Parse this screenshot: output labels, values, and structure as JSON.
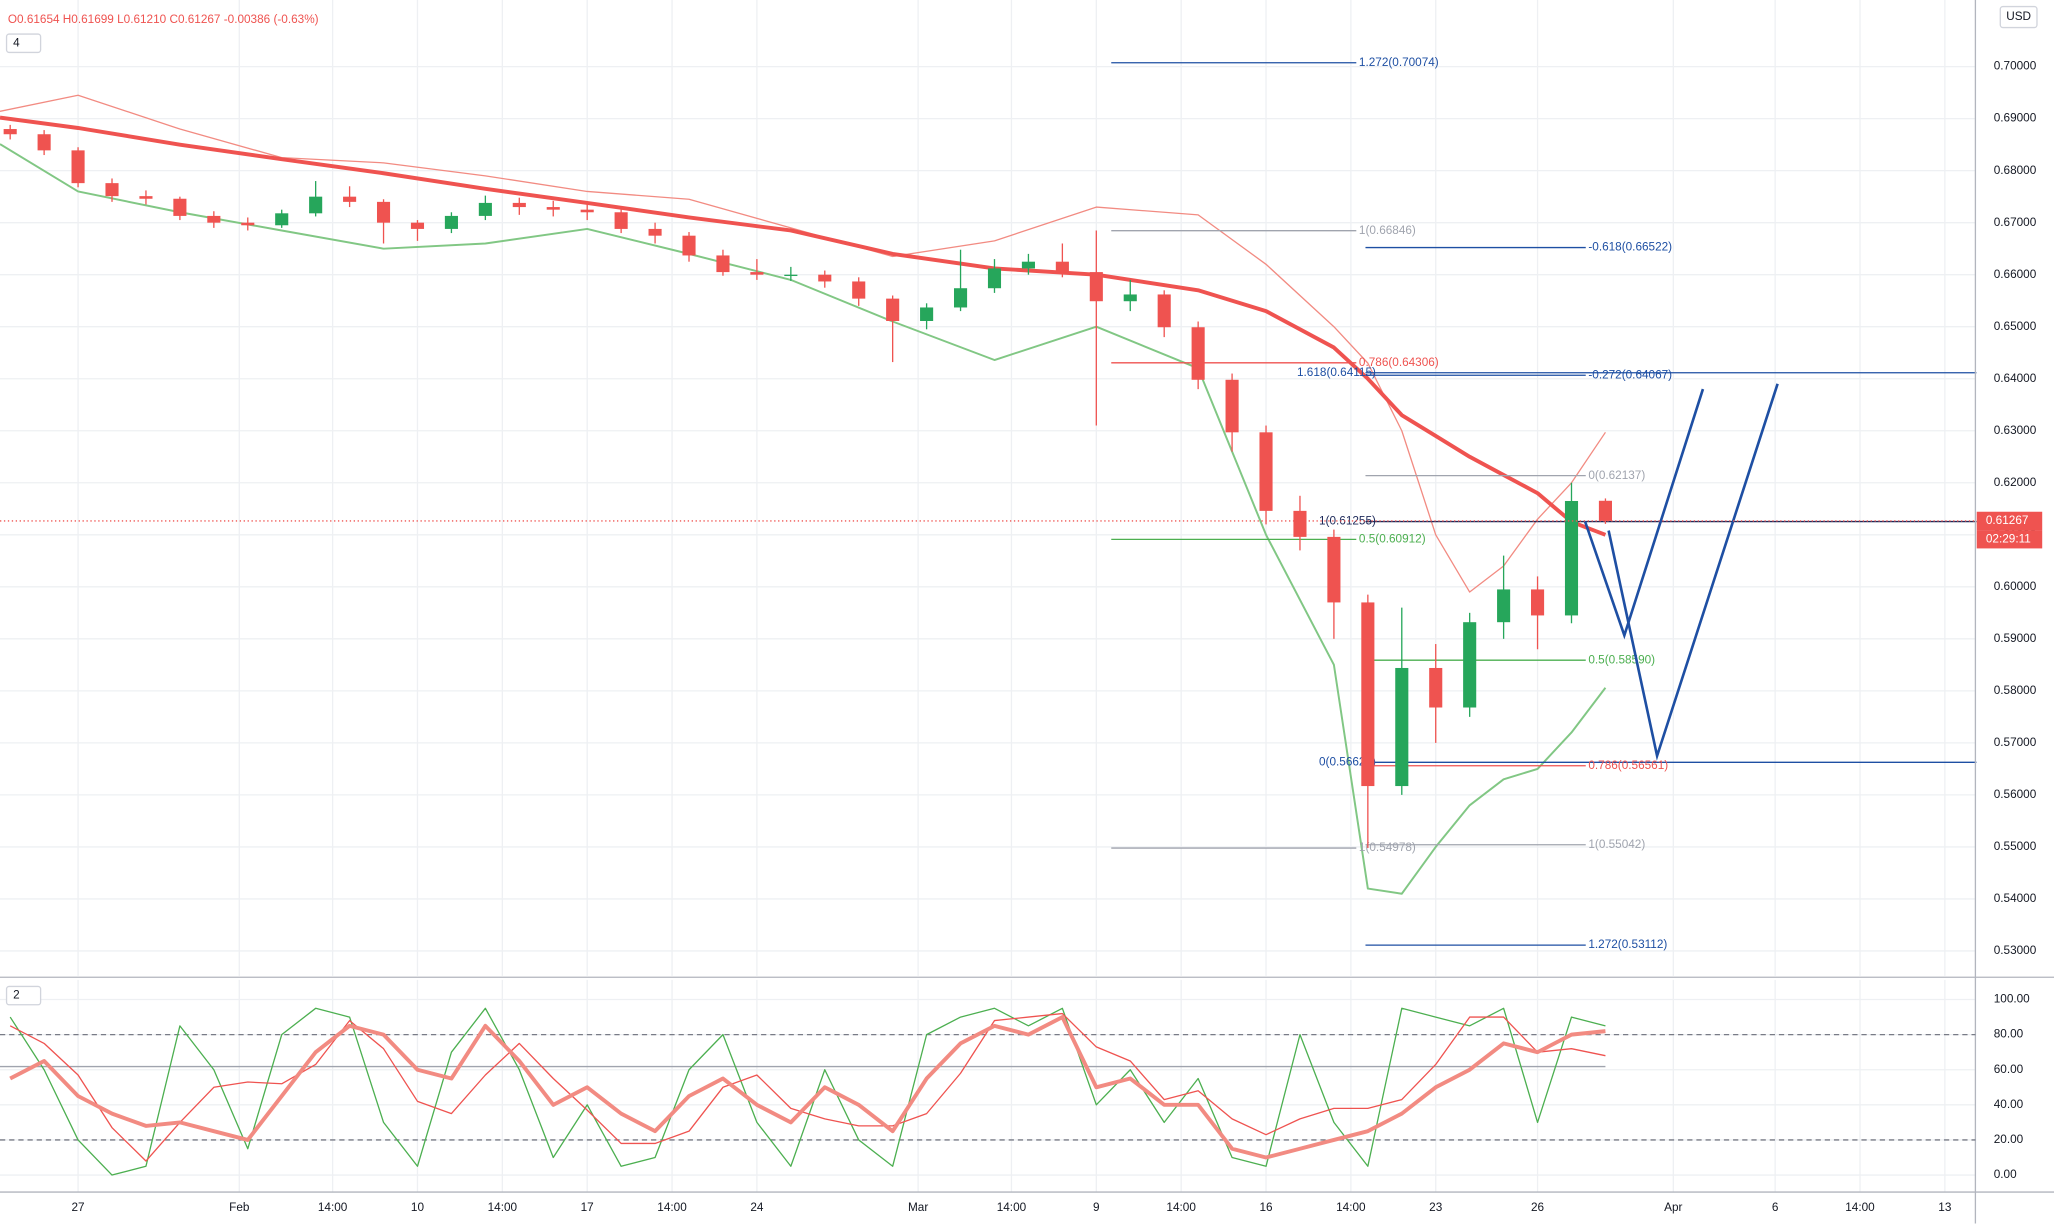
{
  "chart_data": {
    "type": "candlestick",
    "header": "O0.61654 H0.61699 L0.61210 C0.61267 -0.00386 (-0.63%)",
    "interval": "4",
    "pane2_label": "2",
    "currency": "USD",
    "countdown": "02:29:11",
    "last_price": 0.61267,
    "up_color": "#26a65b",
    "down_color": "#ef5350",
    "grid": true,
    "xlim": [
      -2.3,
      55.9
    ],
    "xticks": [
      {
        "value": 0,
        "label": "27"
      },
      {
        "value": 4.75,
        "label": "Feb"
      },
      {
        "value": 7.5,
        "label": "14:00"
      },
      {
        "value": 10,
        "label": "10"
      },
      {
        "value": 12.5,
        "label": "14:00"
      },
      {
        "value": 15,
        "label": "17"
      },
      {
        "value": 17.5,
        "label": "14:00"
      },
      {
        "value": 20,
        "label": "24"
      },
      {
        "value": 24.75,
        "label": "Mar"
      },
      {
        "value": 27.5,
        "label": "14:00"
      },
      {
        "value": 30,
        "label": "9"
      },
      {
        "value": 32.5,
        "label": "14:00"
      },
      {
        "value": 35,
        "label": "16"
      },
      {
        "value": 37.5,
        "label": "14:00"
      },
      {
        "value": 40,
        "label": "23"
      },
      {
        "value": 43,
        "label": "26"
      },
      {
        "value": 47,
        "label": "Apr"
      },
      {
        "value": 50,
        "label": "6"
      },
      {
        "value": 52.5,
        "label": "14:00"
      },
      {
        "value": 55,
        "label": "13"
      }
    ],
    "ylim": [
      0.5252,
      0.7128
    ],
    "yticks": [
      {
        "value": 0.53,
        "label": "0.53000"
      },
      {
        "value": 0.54,
        "label": "0.54000"
      },
      {
        "value": 0.55,
        "label": "0.55000"
      },
      {
        "value": 0.56,
        "label": "0.56000"
      },
      {
        "value": 0.57,
        "label": "0.57000"
      },
      {
        "value": 0.58,
        "label": "0.58000"
      },
      {
        "value": 0.59,
        "label": "0.59000"
      },
      {
        "value": 0.6,
        "label": "0.60000"
      },
      {
        "value": 0.61,
        "label": "0.61000"
      },
      {
        "value": 0.62,
        "label": "0.62000"
      },
      {
        "value": 0.63,
        "label": "0.63000"
      },
      {
        "value": 0.64,
        "label": "0.64000"
      },
      {
        "value": 0.65,
        "label": "0.65000"
      },
      {
        "value": 0.66,
        "label": "0.66000"
      },
      {
        "value": 0.67,
        "label": "0.67000"
      },
      {
        "value": 0.68,
        "label": "0.68000"
      },
      {
        "value": 0.69,
        "label": "0.69000"
      },
      {
        "value": 0.7,
        "label": "0.70000"
      }
    ],
    "x": [
      -2,
      -1,
      0,
      1,
      2,
      3,
      4,
      5,
      6,
      7,
      8,
      9,
      10,
      11,
      12,
      13,
      14,
      15,
      16,
      17,
      18,
      19,
      20,
      21,
      22,
      23,
      24,
      25,
      26,
      27,
      28,
      29,
      30,
      31,
      32,
      33,
      34,
      35,
      36,
      37,
      38,
      39,
      40,
      41,
      42,
      43,
      44,
      45
    ],
    "open": [
      0.688,
      0.687,
      0.6839,
      0.6776,
      0.6751,
      0.6746,
      0.6713,
      0.67,
      0.6695,
      0.6718,
      0.675,
      0.674,
      0.67,
      0.6688,
      0.6713,
      0.6738,
      0.673,
      0.6725,
      0.672,
      0.6688,
      0.6675,
      0.6637,
      0.6605,
      0.66,
      0.66,
      0.6587,
      0.6554,
      0.6511,
      0.6537,
      0.6574,
      0.6612,
      0.6625,
      0.6605,
      0.6549,
      0.6562,
      0.6499,
      0.6398,
      0.6297,
      0.6146,
      0.6096,
      0.597,
      0.5617,
      0.5844,
      0.5768,
      0.5932,
      0.5995,
      0.5945,
      0.61654
    ],
    "high": [
      0.6888,
      0.6878,
      0.6845,
      0.6785,
      0.6762,
      0.675,
      0.6722,
      0.671,
      0.6725,
      0.678,
      0.677,
      0.6745,
      0.6705,
      0.672,
      0.6752,
      0.6748,
      0.6742,
      0.6735,
      0.6728,
      0.67,
      0.6682,
      0.6648,
      0.663,
      0.6615,
      0.6608,
      0.6595,
      0.656,
      0.6545,
      0.6648,
      0.663,
      0.664,
      0.666,
      0.6685,
      0.659,
      0.657,
      0.651,
      0.641,
      0.631,
      0.6175,
      0.611,
      0.5985,
      0.596,
      0.589,
      0.595,
      0.606,
      0.602,
      0.62,
      0.61699
    ],
    "low": [
      0.686,
      0.683,
      0.6768,
      0.674,
      0.6735,
      0.6705,
      0.669,
      0.6685,
      0.669,
      0.6712,
      0.673,
      0.666,
      0.6665,
      0.668,
      0.6705,
      0.6715,
      0.6712,
      0.6705,
      0.668,
      0.666,
      0.6625,
      0.6598,
      0.659,
      0.6588,
      0.6575,
      0.654,
      0.6432,
      0.6495,
      0.653,
      0.6565,
      0.66,
      0.6595,
      0.631,
      0.653,
      0.648,
      0.638,
      0.626,
      0.612,
      0.607,
      0.59,
      0.5498,
      0.56,
      0.57,
      0.575,
      0.59,
      0.588,
      0.593,
      0.6121
    ],
    "close": [
      0.687,
      0.6839,
      0.6776,
      0.6751,
      0.6746,
      0.6713,
      0.67,
      0.6695,
      0.6718,
      0.675,
      0.674,
      0.67,
      0.6688,
      0.6713,
      0.6738,
      0.673,
      0.6725,
      0.672,
      0.6688,
      0.6675,
      0.6637,
      0.6605,
      0.66,
      0.66,
      0.6587,
      0.6554,
      0.6511,
      0.6537,
      0.6574,
      0.6612,
      0.6625,
      0.6605,
      0.6549,
      0.6562,
      0.6499,
      0.6398,
      0.6297,
      0.6146,
      0.6096,
      0.597,
      0.5617,
      0.5844,
      0.5768,
      0.5932,
      0.5995,
      0.5945,
      0.6165,
      0.61267
    ],
    "overlay_x": [
      -2.3,
      0,
      3,
      6,
      9,
      12,
      15,
      18,
      21,
      24,
      27,
      30,
      33,
      35,
      37,
      38,
      39,
      40,
      41,
      42,
      43,
      44,
      45
    ],
    "overlays": [
      {
        "color": "#f28b82",
        "width": 1,
        "values": [
          0.6914,
          0.6945,
          0.688,
          0.6825,
          0.6815,
          0.679,
          0.676,
          0.6745,
          0.669,
          0.6635,
          0.6665,
          0.673,
          0.6715,
          0.662,
          0.65,
          0.643,
          0.63,
          0.61,
          0.599,
          0.604,
          0.613,
          0.62,
          0.6297
        ]
      },
      {
        "color": "#81c784",
        "width": 1.5,
        "values": [
          0.6851,
          0.676,
          0.672,
          0.6685,
          0.665,
          0.666,
          0.6688,
          0.664,
          0.659,
          0.651,
          0.6436,
          0.65,
          0.642,
          0.61,
          0.585,
          0.542,
          0.541,
          0.55,
          0.558,
          0.563,
          0.565,
          0.572,
          0.5806
        ]
      },
      {
        "color": "#ef5350",
        "width": 3,
        "values": [
          0.6902,
          0.6882,
          0.685,
          0.6822,
          0.6795,
          0.6765,
          0.6738,
          0.671,
          0.6685,
          0.664,
          0.6612,
          0.66,
          0.657,
          0.653,
          0.646,
          0.64,
          0.633,
          0.629,
          0.625,
          0.6215,
          0.618,
          0.6125,
          0.61
        ]
      }
    ],
    "fib_levels": [
      {
        "value": 0.70074,
        "label": "1.272(0.70074)",
        "color": "#1e4fa3",
        "x": [
          30.44,
          37.66
        ],
        "label_side": "right"
      },
      {
        "value": 0.66846,
        "label": "1(0.66846)",
        "color": "#a0a4ae",
        "x": [
          30.44,
          37.66
        ],
        "label_side": "right"
      },
      {
        "value": 0.66522,
        "label": "-0.618(0.66522)",
        "color": "#1e4fa3",
        "x": [
          37.93,
          44.42
        ],
        "label_side": "right"
      },
      {
        "value": 0.64306,
        "label": "0.786(0.64306)",
        "color": "#ef5350",
        "x": [
          30.44,
          37.66
        ],
        "label_side": "right"
      },
      {
        "value": 0.64115,
        "label": "1.618(0.64115)",
        "color": "#1e4fa3",
        "x": [
          37.93,
          55.93
        ],
        "label_side": "left"
      },
      {
        "value": 0.64067,
        "label": "-0.272(0.64067)",
        "color": "#1e4fa3",
        "x": [
          37.93,
          44.42
        ],
        "label_side": "right"
      },
      {
        "value": 0.62137,
        "label": "0(0.62137)",
        "color": "#a0a4ae",
        "x": [
          37.93,
          44.42
        ],
        "label_side": "right"
      },
      {
        "value": 0.61255,
        "label": "1(0.61255)",
        "color": "#1e2a5a",
        "x": [
          37.93,
          55.93
        ],
        "label_side": "left"
      },
      {
        "value": 0.60912,
        "label": "0.5(0.60912)",
        "color": "#4caf50",
        "x": [
          30.44,
          37.66
        ],
        "label_side": "right"
      },
      {
        "value": 0.5859,
        "label": "0.5(0.58590)",
        "color": "#4caf50",
        "x": [
          37.93,
          44.42
        ],
        "label_side": "right"
      },
      {
        "value": 0.56626,
        "label": "0(0.56626)",
        "color": "#1e4fa3",
        "x": [
          37.93,
          55.93
        ],
        "label_side": "left"
      },
      {
        "value": 0.56561,
        "label": "0.786(0.56561)",
        "color": "#ef5350",
        "x": [
          37.93,
          44.42
        ],
        "label_side": "right"
      },
      {
        "value": 0.54978,
        "label": "1(0.54978)",
        "color": "#a0a4ae",
        "x": [
          30.44,
          37.66
        ],
        "label_side": "right"
      },
      {
        "value": 0.55042,
        "label": "1(0.55042)",
        "color": "#a0a4ae",
        "x": [
          37.93,
          44.42
        ],
        "label_side": "right"
      },
      {
        "value": 0.53112,
        "label": "1.272(0.53112)",
        "color": "#1e4fa3",
        "x": [
          37.93,
          44.42
        ],
        "label_side": "right"
      }
    ],
    "oscillator": {
      "ylim": [
        -9.7,
        111.2
      ],
      "yticks": [
        {
          "value": 0,
          "label": "0.00"
        },
        {
          "value": 20,
          "label": "20.00"
        },
        {
          "value": 40,
          "label": "40.00"
        },
        {
          "value": 60,
          "label": "60.00"
        },
        {
          "value": 80,
          "label": "80.00"
        },
        {
          "value": 100,
          "label": "100.00"
        }
      ],
      "levels": [
        {
          "value": 80,
          "dashed": true
        },
        {
          "value": 20,
          "dashed": true
        },
        {
          "value": 61.8,
          "dashed": false
        }
      ],
      "series": [
        {
          "color": "#4caf50",
          "width": 1,
          "values": [
            90,
            60,
            20,
            0,
            5,
            85,
            60,
            15,
            80,
            95,
            90,
            30,
            5,
            70,
            95,
            60,
            10,
            40,
            5,
            10,
            60,
            80,
            30,
            5,
            60,
            20,
            5,
            80,
            90,
            95,
            85,
            95,
            40,
            60,
            30,
            55,
            10,
            5,
            80,
            30,
            5,
            95,
            90,
            85,
            95,
            30,
            90,
            85
          ]
        },
        {
          "color": "#ef5350",
          "width": 1,
          "values": [
            85,
            75,
            57,
            27,
            8,
            30,
            50,
            53,
            52,
            63,
            88,
            72,
            42,
            35,
            57,
            75,
            55,
            37,
            18,
            18,
            25,
            50,
            57,
            38,
            32,
            28,
            28,
            35,
            58,
            88,
            90,
            92,
            73,
            65,
            43,
            48,
            32,
            23,
            32,
            38,
            38,
            43,
            63,
            90,
            90,
            70,
            72,
            68
          ]
        },
        {
          "color": "#f28b82",
          "width": 3,
          "values": [
            55,
            65,
            45,
            35,
            28,
            30,
            25,
            20,
            45,
            70,
            85,
            80,
            60,
            55,
            85,
            65,
            40,
            50,
            35,
            25,
            45,
            55,
            40,
            30,
            50,
            40,
            25,
            55,
            75,
            85,
            80,
            90,
            50,
            55,
            40,
            40,
            15,
            10,
            15,
            20,
            25,
            35,
            50,
            60,
            75,
            70,
            80,
            82
          ]
        }
      ]
    }
  }
}
